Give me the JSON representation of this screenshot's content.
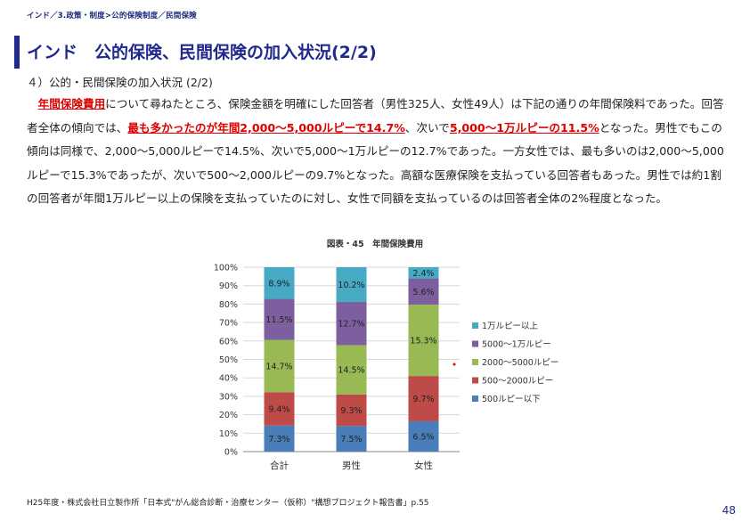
{
  "breadcrumb": "インド／3.政策・制度>公的保険制度／民間保険",
  "title": "インド　公的保険、民間保険の加入状況(2/2)",
  "subheading": "４）公的・民間保険の加入状況 (2/2)",
  "paragraph": {
    "indent": "　",
    "hl1": "年間保険費用",
    "t1": "について尋ねたところ、保険金額を明確にした回答者（男性325人、女性49人）は下記の通りの年間保険料であった。回答者全体の傾向では、",
    "hl2": "最も多かったのが年間2,000～5,000ルピーで14.7%",
    "t2": "、次いで",
    "hl3": "5,000～1万ルピーの11.5%",
    "t3": "となった。男性でもこの傾向は同様で、2,000～5,000ルピーで14.5%、次いで5,000～1万ルピーの12.7%であった。一方女性では、最も多いのは2,000～5,000ルピーで15.3%であったが、次いで500～2,000ルピーの9.7%となった。高額な医療保険を支払っている回答者もあった。男性では約1割の回答者が年間1万ルピー以上の保険を支払っていたのに対し、女性で同額を支払っているのは回答者全体の2%程度となった。"
  },
  "chart_title": "図表・45　年間保険費用",
  "footnote": "H25年度・株式会社日立製作所「日本式\"がん総合診断・治療センター（仮称）\"構想プロジェクト報告書」p.55",
  "page_number": "48",
  "chart_data": {
    "type": "bar",
    "stacked": "100%",
    "categories": [
      "合計",
      "男性",
      "女性"
    ],
    "series": [
      {
        "name": "500ルピー以下",
        "values": [
          7.3,
          7.5,
          6.5
        ],
        "labels": [
          "7.3%",
          "7.5%",
          "6.5%"
        ],
        "color": "#4a7ebb"
      },
      {
        "name": "500～2000ルピー",
        "values": [
          9.4,
          9.3,
          9.7
        ],
        "labels": [
          "9.4%",
          "9.3%",
          "9.7%"
        ],
        "color": "#be4b48"
      },
      {
        "name": "2000～5000ルピー",
        "values": [
          14.7,
          14.5,
          15.3
        ],
        "labels": [
          "14.7%",
          "14.5%",
          "15.3%"
        ],
        "color": "#98b954"
      },
      {
        "name": "5000～1万ルピー",
        "values": [
          11.5,
          12.7,
          5.6
        ],
        "labels": [
          "11.5%",
          "12.7%",
          "5.6%"
        ],
        "color": "#7d5fa0"
      },
      {
        "name": "1万ルピー以上",
        "values": [
          8.9,
          10.2,
          2.4
        ],
        "labels": [
          "8.9%",
          "10.2%",
          "2.4%"
        ],
        "color": "#46aac5"
      }
    ],
    "y_ticks": [
      "0%",
      "10%",
      "20%",
      "30%",
      "40%",
      "50%",
      "60%",
      "70%",
      "80%",
      "90%",
      "100%"
    ],
    "ylim": [
      0,
      100
    ],
    "grid": true,
    "legend_position": "right"
  }
}
